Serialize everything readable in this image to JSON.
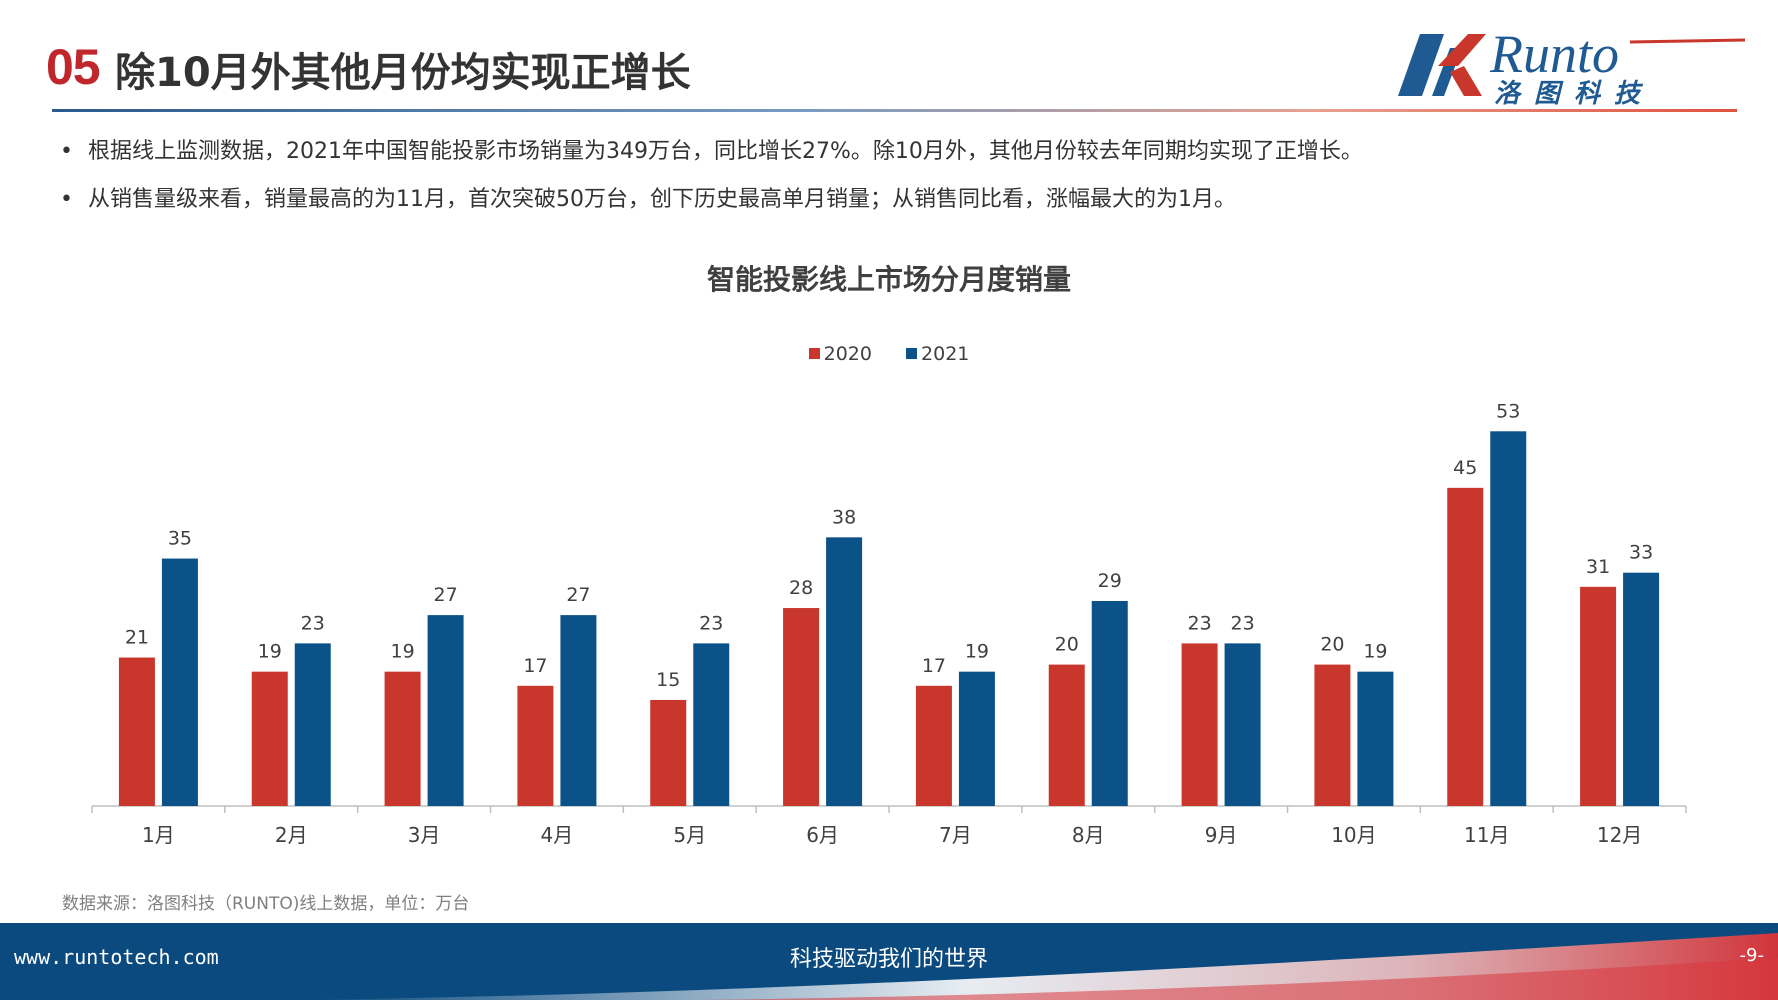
{
  "header": {
    "section_number": "05",
    "title": "除10月外其他月份均实现正增长"
  },
  "logo": {
    "latin": "Runto",
    "chinese": "洛图科技"
  },
  "bullets": [
    "根据线上监测数据，2021年中国智能投影市场销量为349万台，同比增长27%。除10月外，其他月份较去年同期均实现了正增长。",
    "从销售量级来看，销量最高的为11月，首次突破50万台，创下历史最高单月销量；从销售同比看，涨幅最大的为1月。"
  ],
  "bullet_marker": "•",
  "chart_data": {
    "type": "bar",
    "title": "智能投影线上市场分月度销量",
    "categories": [
      "1月",
      "2月",
      "3月",
      "4月",
      "5月",
      "6月",
      "7月",
      "8月",
      "9月",
      "10月",
      "11月",
      "12月"
    ],
    "series": [
      {
        "name": "2020",
        "color": "#c9372c",
        "values": [
          21,
          19,
          19,
          17,
          15,
          28,
          17,
          20,
          23,
          20,
          45,
          31
        ]
      },
      {
        "name": "2021",
        "color": "#0a5288",
        "values": [
          35,
          23,
          27,
          27,
          23,
          38,
          19,
          29,
          23,
          19,
          53,
          33
        ]
      }
    ],
    "ylim": [
      0,
      60
    ],
    "xlabel": "",
    "ylabel": "",
    "grid": false,
    "legend_position": "top-center",
    "data_labels": true
  },
  "source": "数据来源：洛图科技（RUNTO)线上数据，单位：万台",
  "footer": {
    "url": "www.runtotech.com",
    "slogan": "科技驱动我们的世界",
    "page": "-9-"
  },
  "colors": {
    "accent_red": "#c0272d",
    "brand_blue": "#0b4a7e",
    "bar_2020": "#c9372c",
    "bar_2021": "#0a5288"
  }
}
